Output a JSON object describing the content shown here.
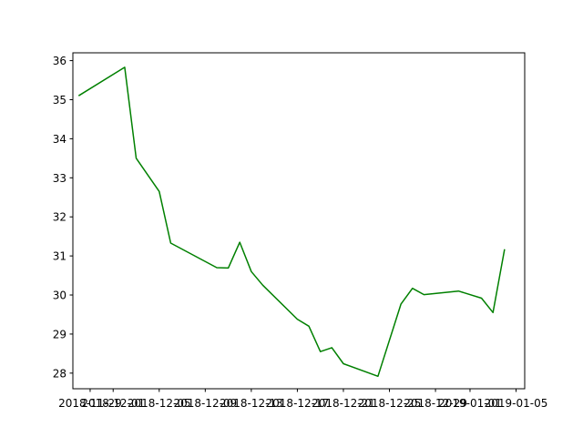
{
  "chart_data": {
    "type": "line",
    "title": "",
    "xlabel": "",
    "ylabel": "",
    "grid": false,
    "x_axis_type": "date",
    "xlim": [
      "2018-11-27",
      "2019-01-06"
    ],
    "ylim": [
      27.6,
      36.2
    ],
    "x_ticks": [
      "2018-11-29",
      "2018-12-01",
      "2018-12-05",
      "2018-12-09",
      "2018-12-13",
      "2018-12-17",
      "2018-12-21",
      "2018-12-25",
      "2018-12-29",
      "2019-01-01",
      "2019-01-05"
    ],
    "y_ticks": [
      28,
      29,
      30,
      31,
      32,
      33,
      34,
      35,
      36
    ],
    "series": [
      {
        "color": "#008000",
        "points": [
          {
            "x": "2018-11-28",
            "y": 35.1
          },
          {
            "x": "2018-12-02",
            "y": 35.83
          },
          {
            "x": "2018-12-03",
            "y": 33.5
          },
          {
            "x": "2018-12-05",
            "y": 32.65
          },
          {
            "x": "2018-12-06",
            "y": 31.33
          },
          {
            "x": "2018-12-10",
            "y": 30.7
          },
          {
            "x": "2018-12-11",
            "y": 30.69
          },
          {
            "x": "2018-12-12",
            "y": 31.35
          },
          {
            "x": "2018-12-13",
            "y": 30.6
          },
          {
            "x": "2018-12-14",
            "y": 30.25
          },
          {
            "x": "2018-12-17",
            "y": 29.38
          },
          {
            "x": "2018-12-18",
            "y": 29.2
          },
          {
            "x": "2018-12-19",
            "y": 28.55
          },
          {
            "x": "2018-12-20",
            "y": 28.65
          },
          {
            "x": "2018-12-21",
            "y": 28.24
          },
          {
            "x": "2018-12-24",
            "y": 27.92
          },
          {
            "x": "2018-12-26",
            "y": 29.77
          },
          {
            "x": "2018-12-27",
            "y": 30.17
          },
          {
            "x": "2018-12-28",
            "y": 30.01
          },
          {
            "x": "2018-12-31",
            "y": 30.1
          },
          {
            "x": "2019-01-02",
            "y": 29.92
          },
          {
            "x": "2019-01-03",
            "y": 29.55
          },
          {
            "x": "2019-01-04",
            "y": 31.17
          }
        ]
      }
    ]
  }
}
